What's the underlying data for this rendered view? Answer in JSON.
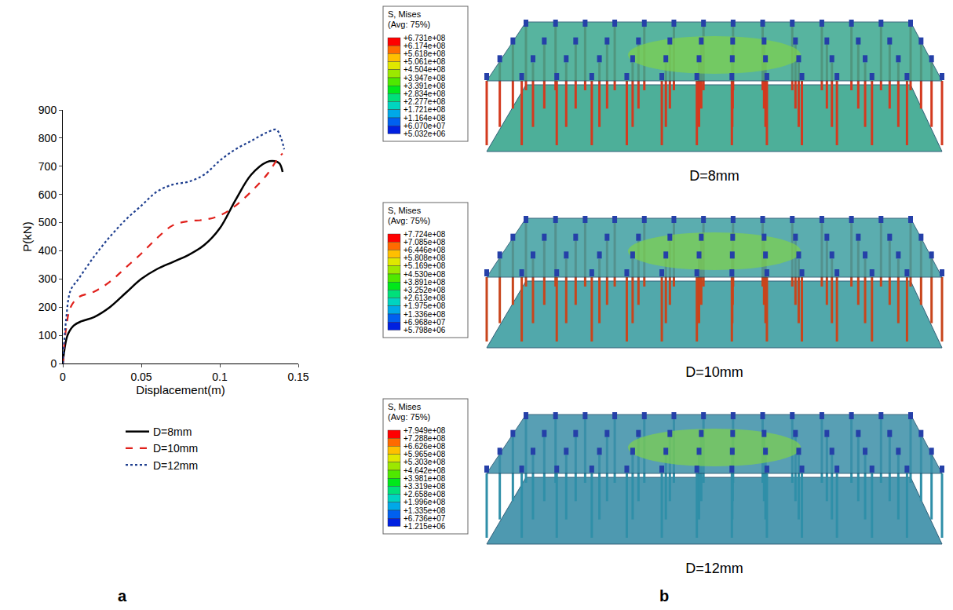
{
  "chart_data": {
    "type": "line",
    "panel_label": "a",
    "x_label": "Displacement(m)",
    "y_label": "P(kN)",
    "xlim": [
      0,
      0.15
    ],
    "xticks": [
      0,
      0.05,
      0.1,
      0.15
    ],
    "ylim": [
      0,
      900
    ],
    "yticks": [
      0,
      100,
      200,
      300,
      400,
      500,
      600,
      700,
      800,
      900
    ],
    "legend": "bottom",
    "series": [
      {
        "name": "D=8mm",
        "color": "#000000",
        "line_style": "solid",
        "x": [
          0,
          0.003,
          0.007,
          0.012,
          0.02,
          0.03,
          0.04,
          0.05,
          0.06,
          0.07,
          0.08,
          0.09,
          0.1,
          0.11,
          0.12,
          0.13,
          0.135,
          0.138,
          0.14
        ],
        "values": [
          0,
          100,
          135,
          150,
          165,
          200,
          250,
          300,
          335,
          360,
          385,
          420,
          480,
          580,
          670,
          715,
          718,
          710,
          680
        ]
      },
      {
        "name": "D=10mm",
        "color": "#e0201b",
        "line_style": "dashed",
        "x": [
          0,
          0.002,
          0.005,
          0.01,
          0.02,
          0.03,
          0.04,
          0.05,
          0.06,
          0.07,
          0.08,
          0.09,
          0.1,
          0.11,
          0.12,
          0.13,
          0.138,
          0.14
        ],
        "values": [
          0,
          120,
          200,
          235,
          255,
          290,
          340,
          390,
          445,
          490,
          505,
          510,
          525,
          560,
          610,
          670,
          735,
          745
        ]
      },
      {
        "name": "D=12mm",
        "color": "#1f3f8f",
        "line_style": "dotted",
        "x": [
          0,
          0.002,
          0.005,
          0.01,
          0.02,
          0.03,
          0.04,
          0.05,
          0.06,
          0.07,
          0.08,
          0.09,
          0.1,
          0.11,
          0.12,
          0.13,
          0.136,
          0.139,
          0.141
        ],
        "values": [
          0,
          150,
          260,
          300,
          380,
          450,
          510,
          560,
          610,
          635,
          645,
          670,
          720,
          760,
          790,
          820,
          830,
          800,
          760
        ]
      }
    ]
  },
  "contour_panel": {
    "panel_label": "b",
    "plots": [
      {
        "caption": "D=8mm",
        "legend_title": "S, Mises",
        "legend_subtitle": "(Avg: 75%)",
        "levels": [
          "+6.731e+08",
          "+6.174e+08",
          "+5.618e+08",
          "+5.061e+08",
          "+4.504e+08",
          "+3.947e+08",
          "+3.391e+08",
          "+2.834e+08",
          "+2.277e+08",
          "+1.721e+08",
          "+1.164e+08",
          "+6.070e+07",
          "+5.032e+06"
        ]
      },
      {
        "caption": "D=10mm",
        "legend_title": "S, Mises",
        "legend_subtitle": "(Avg: 75%)",
        "levels": [
          "+7.724e+08",
          "+7.085e+08",
          "+6.446e+08",
          "+5.808e+08",
          "+5.169e+08",
          "+4.530e+08",
          "+3.891e+08",
          "+3.252e+08",
          "+2.613e+08",
          "+1.975e+08",
          "+1.336e+08",
          "+6.968e+07",
          "+5.798e+06"
        ]
      },
      {
        "caption": "D=12mm",
        "legend_title": "S, Mises",
        "legend_subtitle": "(Avg: 75%)",
        "levels": [
          "+7.949e+08",
          "+7.288e+08",
          "+6.626e+08",
          "+5.965e+08",
          "+5.303e+08",
          "+4.642e+08",
          "+3.981e+08",
          "+3.319e+08",
          "+2.658e+08",
          "+1.996e+08",
          "+1.335e+08",
          "+6.736e+07",
          "+1.215e+06"
        ]
      }
    ]
  }
}
